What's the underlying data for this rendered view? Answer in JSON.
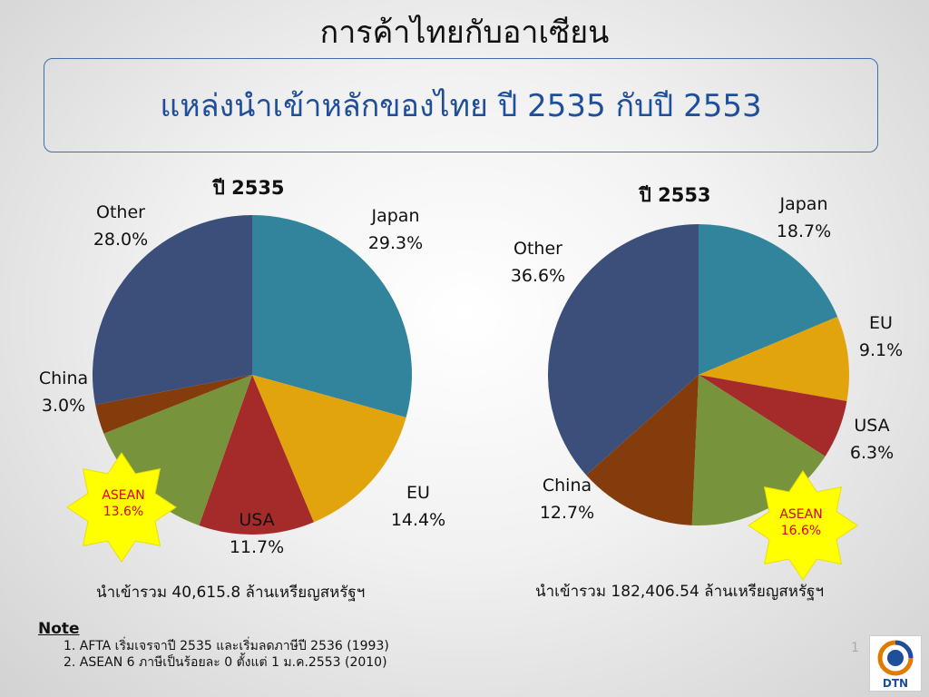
{
  "slide": {
    "title": "การค้าไทยกับอาเซียน",
    "subtitle": "แหล่งนำเข้าหลักของไทย ปี 2535 กับปี 2553",
    "page_number": "1",
    "logo_text": "DTN"
  },
  "colors": {
    "japan": "#31849b",
    "eu": "#e2a40c",
    "usa": "#a52a2a",
    "asean": "#77933c",
    "china": "#843c0c",
    "other": "#3c4f7a",
    "star": "#ffff00",
    "star_text": "#e00000"
  },
  "chart_data": [
    {
      "type": "pie",
      "title": "ปี 2535",
      "categories": [
        "Japan",
        "EU",
        "USA",
        "ASEAN",
        "China",
        "Other"
      ],
      "values": [
        29.3,
        14.4,
        11.7,
        13.6,
        3.0,
        28.0
      ],
      "labels": [
        "Japan\n29.3%",
        "EU\n14.4%",
        "USA\n11.7%",
        "ASEAN\n13.6%",
        "China\n3.0%",
        "Other\n28.0%"
      ],
      "total_note": "นำเข้ารวม 40,615.8 ล้านเหรียญสหรัฐฯ"
    },
    {
      "type": "pie",
      "title": "ปี 2553",
      "categories": [
        "Japan",
        "EU",
        "USA",
        "ASEAN",
        "China",
        "Other"
      ],
      "values": [
        18.7,
        9.1,
        6.3,
        16.6,
        12.7,
        36.6
      ],
      "labels": [
        "Japan\n18.7%",
        "EU\n9.1%",
        "USA\n6.3%",
        "ASEAN\n16.6%",
        "China\n12.7%",
        "Other\n36.6%"
      ],
      "total_note": "นำเข้ารวม 182,406.54 ล้านเหรียญสหรัฐฯ"
    }
  ],
  "notes": {
    "heading": "Note",
    "items": [
      "1.  AFTA เริ่มเจรจาปี 2535 และเริ่มลดภาษีปี 2536 (1993)",
      "2.  ASEAN 6 ภาษีเป็นร้อยละ 0 ตั้งแต่ 1 ม.ค.2553 (2010)"
    ]
  }
}
